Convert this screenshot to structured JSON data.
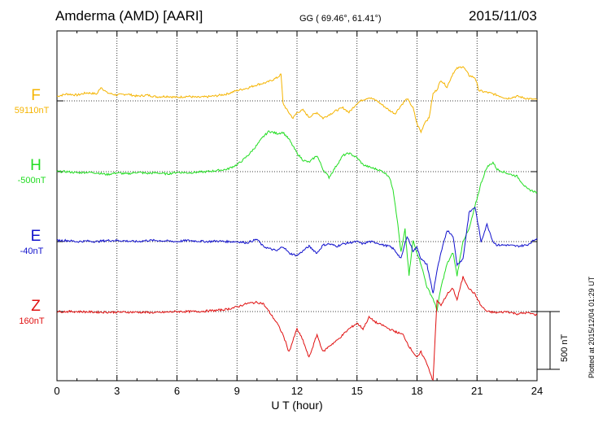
{
  "header": {
    "station": "Amderma (AMD)  [AARI]",
    "coords": "GG ( 69.46°,  61.41°)",
    "date": "2015/11/03"
  },
  "footer": {
    "plotted": "Plotted at 2015/12/04 01:29 UT"
  },
  "scale_bar": {
    "label": "500 nT",
    "value_nT": 500
  },
  "colors": {
    "F": "#f5b400",
    "H": "#22dd22",
    "E": "#1010cc",
    "Z": "#e01010"
  },
  "chart_data": {
    "type": "line",
    "xlabel": "U T (hour)",
    "xlim": [
      0,
      24
    ],
    "xticks": [
      "0",
      "3",
      "6",
      "9",
      "12",
      "15",
      "18",
      "21",
      "24"
    ],
    "grid": true,
    "y_units": "nT",
    "series": [
      {
        "name": "F",
        "baseline_label": "59110nT",
        "color": "#f5b400",
        "x": [
          0,
          0.5,
          1,
          1.5,
          2,
          2.2,
          2.5,
          3,
          3.5,
          4,
          4.5,
          5,
          5.5,
          6,
          6.5,
          7,
          7.5,
          8,
          8.5,
          9,
          9.5,
          10,
          10.5,
          11,
          11.2,
          11.3,
          11.5,
          11.8,
          12,
          12.3,
          12.6,
          13,
          13.3,
          13.6,
          14,
          14.3,
          14.6,
          15,
          15.3,
          15.6,
          16,
          16.3,
          16.6,
          16.9,
          17.2,
          17.5,
          17.8,
          18,
          18.2,
          18.4,
          18.6,
          18.8,
          19,
          19.2,
          19.5,
          19.8,
          20,
          20.3,
          20.6,
          20.9,
          21.1,
          21.3,
          21.6,
          22,
          22.5,
          23,
          23.5,
          24
        ],
        "y": [
          40,
          60,
          50,
          70,
          60,
          120,
          70,
          50,
          60,
          40,
          50,
          35,
          40,
          30,
          40,
          30,
          35,
          45,
          60,
          90,
          110,
          140,
          160,
          200,
          230,
          -20,
          -80,
          -150,
          -100,
          -80,
          -140,
          -100,
          -150,
          -120,
          -80,
          -60,
          -100,
          -20,
          10,
          30,
          0,
          -40,
          -80,
          -110,
          -40,
          20,
          -60,
          -200,
          -270,
          -180,
          -150,
          60,
          100,
          180,
          120,
          240,
          280,
          300,
          220,
          200,
          90,
          80,
          70,
          50,
          20,
          40,
          20,
          10
        ]
      },
      {
        "name": "H",
        "baseline_label": "-500nT",
        "color": "#22dd22",
        "x": [
          0,
          0.5,
          1,
          1.5,
          2,
          2.5,
          3,
          3.5,
          4,
          4.5,
          5,
          5.5,
          6,
          6.5,
          7,
          7.5,
          8,
          8.5,
          9,
          9.3,
          9.6,
          10,
          10.3,
          10.6,
          11,
          11.3,
          11.6,
          12,
          12.3,
          12.6,
          13,
          13.3,
          13.6,
          14,
          14.3,
          14.6,
          15,
          15.3,
          15.6,
          16,
          16.3,
          16.6,
          16.8,
          17,
          17.2,
          17.4,
          17.6,
          17.8,
          18,
          18.2,
          18.5,
          18.8,
          19,
          19.2,
          19.5,
          19.8,
          20,
          20.3,
          20.6,
          20.9,
          21.2,
          21.5,
          21.8,
          22,
          22.3,
          22.6,
          23,
          23.5,
          24
        ],
        "y": [
          0,
          0,
          -10,
          -5,
          -10,
          -25,
          -10,
          -20,
          -5,
          -15,
          -10,
          -20,
          -5,
          -10,
          -5,
          0,
          10,
          20,
          60,
          100,
          150,
          230,
          300,
          350,
          330,
          340,
          280,
          160,
          100,
          80,
          140,
          20,
          -50,
          60,
          140,
          160,
          120,
          60,
          40,
          20,
          0,
          -40,
          -150,
          -400,
          -700,
          -500,
          -900,
          -600,
          -700,
          -800,
          -1000,
          -1100,
          -1200,
          -1000,
          -800,
          -700,
          -900,
          -600,
          -500,
          -300,
          -100,
          40,
          80,
          20,
          0,
          -20,
          -40,
          -150,
          -180
        ]
      },
      {
        "name": "E",
        "baseline_label": "-40nT",
        "color": "#1010cc",
        "x": [
          0,
          0.5,
          1,
          1.5,
          2,
          2.5,
          3,
          3.5,
          4,
          4.5,
          5,
          5.5,
          6,
          6.5,
          7,
          7.5,
          8,
          8.5,
          9,
          9.5,
          10,
          10.3,
          10.6,
          11,
          11.3,
          11.6,
          12,
          12.3,
          12.6,
          13,
          13.3,
          13.6,
          14,
          14.3,
          14.6,
          15,
          15.3,
          15.6,
          16,
          16.3,
          16.6,
          16.8,
          17,
          17.2,
          17.5,
          17.8,
          18,
          18.2,
          18.5,
          18.8,
          19,
          19.2,
          19.5,
          19.8,
          20,
          20.3,
          20.6,
          20.9,
          21.2,
          21.5,
          21.8,
          22,
          22.5,
          23,
          23.5,
          24
        ],
        "y": [
          10,
          10,
          0,
          5,
          0,
          10,
          10,
          5,
          0,
          10,
          10,
          5,
          0,
          10,
          5,
          0,
          5,
          0,
          0,
          -10,
          20,
          -40,
          -60,
          -80,
          -40,
          -100,
          -120,
          -80,
          -40,
          -100,
          -30,
          -20,
          -40,
          -20,
          -10,
          0,
          -20,
          0,
          -10,
          -30,
          -40,
          -60,
          -100,
          -150,
          50,
          -80,
          -50,
          -150,
          -200,
          -450,
          -250,
          -100,
          100,
          50,
          -200,
          -150,
          250,
          300,
          0,
          150,
          0,
          -30,
          -30,
          -40,
          -30,
          30
        ]
      },
      {
        "name": "Z",
        "baseline_label": "160nT",
        "color": "#e01010",
        "x": [
          0,
          1,
          2,
          3,
          4,
          5,
          6,
          7,
          8,
          8.5,
          9,
          9.5,
          10,
          10.3,
          10.6,
          11,
          11.3,
          11.6,
          12,
          12.3,
          12.6,
          13,
          13.3,
          13.6,
          14,
          14.3,
          14.6,
          15,
          15.3,
          15.6,
          16,
          16.3,
          16.6,
          17,
          17.3,
          17.6,
          18,
          18.2,
          18.5,
          18.8,
          19,
          19.2,
          19.5,
          19.8,
          20,
          20.3,
          20.6,
          20.9,
          21.2,
          21.5,
          22,
          22.5,
          23,
          23.5,
          24
        ],
        "y": [
          0,
          0,
          -5,
          -5,
          -5,
          -10,
          0,
          0,
          10,
          20,
          40,
          70,
          80,
          70,
          0,
          -100,
          -200,
          -350,
          -150,
          -250,
          -400,
          -200,
          -350,
          -300,
          -250,
          -200,
          -150,
          -100,
          -150,
          -50,
          -100,
          -120,
          -150,
          -180,
          -200,
          -300,
          -400,
          -350,
          -450,
          -600,
          100,
          50,
          150,
          200,
          100,
          300,
          200,
          150,
          50,
          0,
          -10,
          0,
          -20,
          -10,
          -30
        ]
      }
    ]
  }
}
